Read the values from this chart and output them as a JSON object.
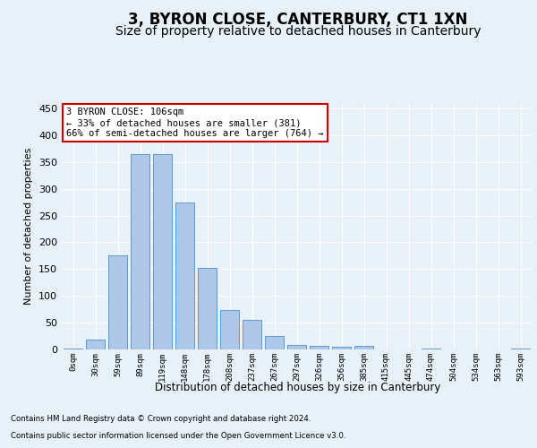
{
  "title": "3, BYRON CLOSE, CANTERBURY, CT1 1XN",
  "subtitle": "Size of property relative to detached houses in Canterbury",
  "xlabel": "Distribution of detached houses by size in Canterbury",
  "ylabel": "Number of detached properties",
  "footer1": "Contains HM Land Registry data © Crown copyright and database right 2024.",
  "footer2": "Contains public sector information licensed under the Open Government Licence v3.0.",
  "annotation_line1": "3 BYRON CLOSE: 106sqm",
  "annotation_line2": "← 33% of detached houses are smaller (381)",
  "annotation_line3": "66% of semi-detached houses are larger (764) →",
  "bar_labels": [
    "0sqm",
    "30sqm",
    "59sqm",
    "89sqm",
    "119sqm",
    "148sqm",
    "178sqm",
    "208sqm",
    "237sqm",
    "267sqm",
    "297sqm",
    "326sqm",
    "356sqm",
    "385sqm",
    "415sqm",
    "445sqm",
    "474sqm",
    "504sqm",
    "534sqm",
    "563sqm",
    "593sqm"
  ],
  "bar_values": [
    2,
    18,
    176,
    365,
    365,
    275,
    152,
    73,
    55,
    25,
    8,
    6,
    5,
    7,
    0,
    0,
    2,
    0,
    0,
    0,
    2
  ],
  "bar_color": "#aec6e8",
  "bar_edge_color": "#5b9bd5",
  "background_color": "#e8f0f8",
  "plot_bg_color": "#e8f0f8",
  "annotation_box_color": "#ffffff",
  "annotation_box_edge": "#cc0000",
  "ylim": [
    0,
    460
  ],
  "yticks": [
    0,
    50,
    100,
    150,
    200,
    250,
    300,
    350,
    400,
    450
  ],
  "title_fontsize": 12,
  "subtitle_fontsize": 10
}
